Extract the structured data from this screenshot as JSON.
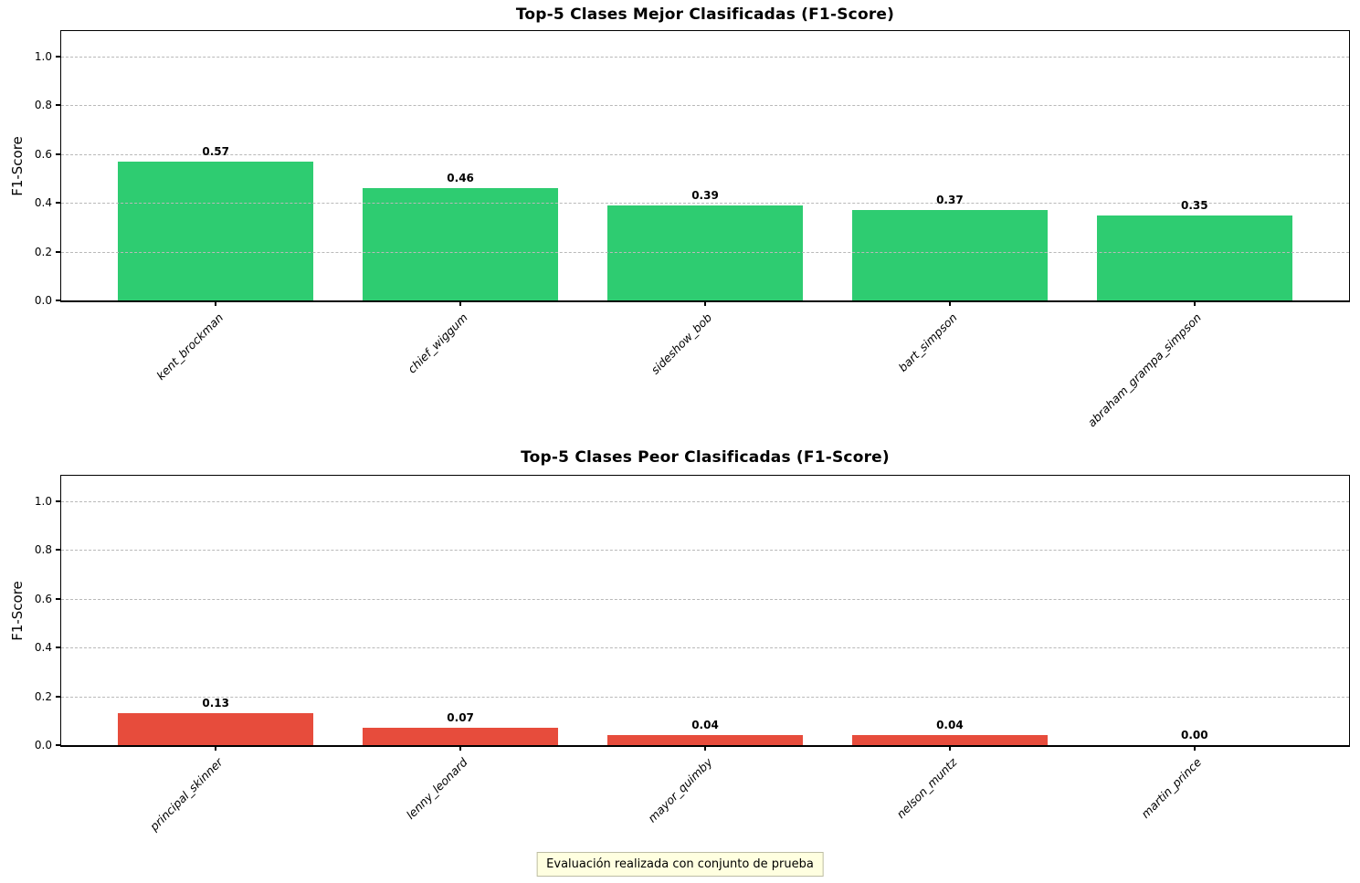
{
  "figure": {
    "footer_note": "Evaluación realizada con conjunto de prueba",
    "background_color": "#ffffff",
    "grid_color": "#b9b9b9",
    "footer_bg_color": "#ffffe0",
    "footer_border_color": "#bdbda4"
  },
  "chart_data": [
    {
      "type": "bar",
      "title": "Top-5 Clases Mejor Clasificadas (F1-Score)",
      "categories": [
        "kent_brockman",
        "chief_wiggum",
        "sideshow_bob",
        "bart_simpson",
        "abraham_grampa_simpson"
      ],
      "values": [
        0.57,
        0.46,
        0.39,
        0.37,
        0.35
      ],
      "value_labels": [
        "0.57",
        "0.46",
        "0.39",
        "0.37",
        "0.35"
      ],
      "bar_color": "#2ecc71",
      "xlabel": "",
      "ylabel": "F1-Score",
      "yticks": [
        0.0,
        0.2,
        0.4,
        0.6,
        0.8,
        1.0
      ],
      "ylim": [
        0,
        1.105
      ],
      "grid": "y-dashed",
      "legend": "none",
      "xtick_style": "italic, rotated 45deg, right-anchored"
    },
    {
      "type": "bar",
      "title": "Top-5 Clases Peor Clasificadas (F1-Score)",
      "categories": [
        "principal_skinner",
        "lenny_leonard",
        "mayor_quimby",
        "nelson_muntz",
        "martin_prince"
      ],
      "values": [
        0.13,
        0.07,
        0.04,
        0.04,
        0.0
      ],
      "value_labels": [
        "0.13",
        "0.07",
        "0.04",
        "0.04",
        "0.00"
      ],
      "bar_color": "#e74c3c",
      "xlabel": "",
      "ylabel": "F1-Score",
      "yticks": [
        0.0,
        0.2,
        0.4,
        0.6,
        0.8,
        1.0
      ],
      "ylim": [
        0,
        1.105
      ],
      "grid": "y-dashed",
      "legend": "none",
      "xtick_style": "italic, rotated 45deg, right-anchored"
    }
  ],
  "layout": {
    "bar_center_percents": [
      12,
      31,
      50,
      69,
      88
    ],
    "bar_width_percent": 15.2
  }
}
